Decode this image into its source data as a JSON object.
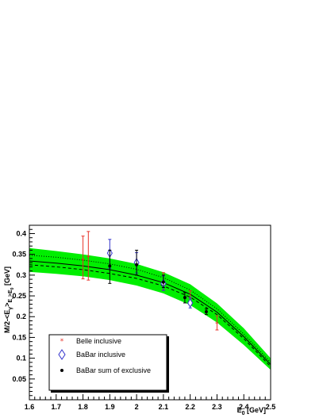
{
  "chart_data": {
    "type": "scatter",
    "title": "",
    "xlabel": {
      "main": "E",
      "sub": "0",
      "unit": " [GeV]"
    },
    "ylabel": {
      "main": "M/2-<E",
      "sub1": "γ",
      "mid": ">",
      "sub2": "E",
      "sub3": "γ",
      "gt": ">E",
      "sub4": "0",
      "unit": " [GeV]"
    },
    "xlim": [
      1.6,
      2.5
    ],
    "ylim": [
      0.0,
      0.42
    ],
    "x_ticks": [
      "1.6",
      "1.7",
      "1.8",
      "1.9",
      "2",
      "2.1",
      "2.2",
      "2.3",
      "2.4",
      "2.5"
    ],
    "y_ticks": [
      "0.05",
      "0.1",
      "0.15",
      "0.2",
      "0.25",
      "0.3",
      "0.35",
      "0.4"
    ],
    "grid": false,
    "legend_position": "bottom-left",
    "colors": {
      "band": "#00ee00",
      "belle": "#e8342b",
      "babar_incl": "#3333cc",
      "babar_excl": "#000000"
    },
    "band": {
      "x": [
        1.6,
        1.7,
        1.8,
        1.9,
        2.0,
        2.1,
        2.2,
        2.3,
        2.4,
        2.5
      ],
      "upper": [
        0.365,
        0.358,
        0.35,
        0.34,
        0.327,
        0.307,
        0.278,
        0.232,
        0.172,
        0.1
      ],
      "lower": [
        0.308,
        0.303,
        0.297,
        0.288,
        0.275,
        0.256,
        0.228,
        0.186,
        0.132,
        0.072
      ]
    },
    "curves": [
      {
        "style": "solid",
        "x": [
          1.6,
          1.7,
          1.8,
          1.9,
          2.0,
          2.1,
          2.2,
          2.3,
          2.4,
          2.5
        ],
        "y": [
          0.334,
          0.329,
          0.322,
          0.313,
          0.3,
          0.282,
          0.254,
          0.211,
          0.152,
          0.085
        ]
      },
      {
        "style": "dotted",
        "x": [
          1.6,
          1.7,
          1.8,
          1.9,
          2.0,
          2.1,
          2.2,
          2.3,
          2.4,
          2.5
        ],
        "y": [
          0.348,
          0.343,
          0.336,
          0.327,
          0.314,
          0.294,
          0.264,
          0.219,
          0.158,
          0.09
        ]
      },
      {
        "style": "dashed",
        "x": [
          1.6,
          1.7,
          1.8,
          1.9,
          2.0,
          2.1,
          2.2,
          2.3,
          2.4,
          2.5
        ],
        "y": [
          0.325,
          0.32,
          0.313,
          0.304,
          0.292,
          0.274,
          0.247,
          0.205,
          0.147,
          0.08
        ]
      }
    ],
    "series": [
      {
        "name": "Belle inclusive",
        "marker": "star",
        "points": [
          {
            "x": 1.8,
            "y": 0.338,
            "lo": 0.291,
            "hi": 0.394
          },
          {
            "x": 1.82,
            "y": 0.345,
            "lo": 0.288,
            "hi": 0.405
          },
          {
            "x": 2.1,
            "y": 0.285,
            "lo": 0.264,
            "hi": 0.306
          },
          {
            "x": 2.2,
            "y": 0.245,
            "lo": 0.228,
            "hi": 0.262
          },
          {
            "x": 2.3,
            "y": 0.185,
            "lo": 0.168,
            "hi": 0.202
          }
        ]
      },
      {
        "name": "BaBar inclusive",
        "marker": "diamond",
        "points": [
          {
            "x": 1.9,
            "y": 0.353,
            "lo": 0.316,
            "hi": 0.386
          },
          {
            "x": 2.0,
            "y": 0.33,
            "lo": 0.305,
            "hi": 0.354
          },
          {
            "x": 2.1,
            "y": 0.28,
            "lo": 0.263,
            "hi": 0.298
          },
          {
            "x": 2.2,
            "y": 0.233,
            "lo": 0.221,
            "hi": 0.246
          }
        ]
      },
      {
        "name": "BaBar sum of exclusive",
        "marker": "dot",
        "points": [
          {
            "x": 1.9,
            "y": 0.322,
            "lo": 0.28,
            "hi": 0.36
          },
          {
            "x": 2.0,
            "y": 0.325,
            "lo": 0.3,
            "hi": 0.36
          },
          {
            "x": 2.1,
            "y": 0.283,
            "lo": 0.27,
            "hi": 0.3
          },
          {
            "x": 2.18,
            "y": 0.246,
            "lo": 0.233,
            "hi": 0.258
          },
          {
            "x": 2.26,
            "y": 0.212,
            "lo": 0.205,
            "hi": 0.219
          }
        ]
      }
    ]
  }
}
